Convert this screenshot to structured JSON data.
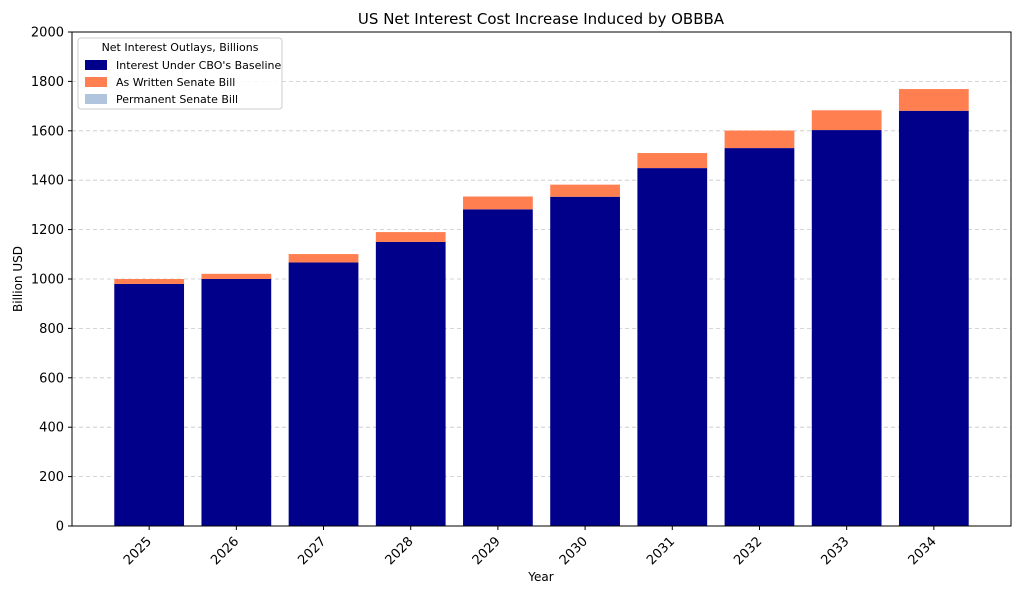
{
  "chart_data": {
    "type": "bar",
    "stacked": true,
    "title": "US Net Interest Cost Increase Induced by OBBBA",
    "xlabel": "Year",
    "ylabel": "Billion USD",
    "ylim": [
      0,
      2000
    ],
    "yticks": [
      0,
      200,
      400,
      600,
      800,
      1000,
      1200,
      1400,
      1600,
      1800,
      2000
    ],
    "grid": "y-dashed",
    "legend_title": "Net Interest Outlays, Billions",
    "legend_position": "top-left",
    "categories": [
      "2025",
      "2026",
      "2027",
      "2028",
      "2029",
      "2030",
      "2031",
      "2032",
      "2033",
      "2034"
    ],
    "series": [
      {
        "name": "Interest Under CBO's Baseline",
        "color": "#00008b",
        "values": [
          980,
          1000,
          1067,
          1150,
          1282,
          1333,
          1449,
          1530,
          1603,
          1681
        ]
      },
      {
        "name": "As Written Senate Bill",
        "color": "#ff7f50",
        "values": [
          20,
          21,
          34,
          40,
          52,
          49,
          61,
          71,
          80,
          88
        ]
      },
      {
        "name": "Permanent Senate Bill",
        "color": "#b0c4de",
        "values": [
          0,
          0,
          0,
          0,
          0,
          0,
          0,
          0,
          0,
          0
        ]
      }
    ]
  }
}
